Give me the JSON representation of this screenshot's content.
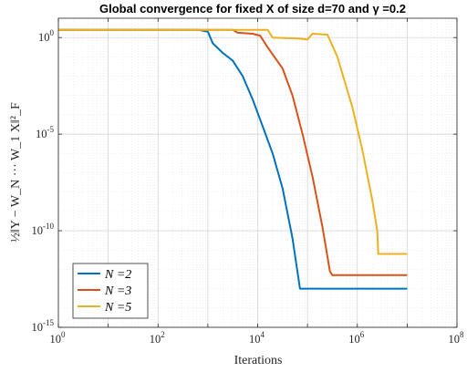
{
  "chart_data": {
    "type": "line",
    "title": "Global convergence for fixed X of size d=70 and γ =0.2",
    "xlabel": "Iterations",
    "ylabel": "½‖Y − W_N ··· W_1 X‖²_F",
    "xscale": "log",
    "yscale": "log",
    "xlim_exp": [
      0,
      8
    ],
    "ylim_exp": [
      -15,
      1
    ],
    "xtick_labels": [
      {
        "base": "10",
        "exp": "0"
      },
      {
        "base": "10",
        "exp": "2"
      },
      {
        "base": "10",
        "exp": "4"
      },
      {
        "base": "10",
        "exp": "6"
      },
      {
        "base": "10",
        "exp": "8"
      }
    ],
    "ytick_labels": [
      {
        "base": "10",
        "exp": "0"
      },
      {
        "base": "10",
        "exp": "-5"
      },
      {
        "base": "10",
        "exp": "-10"
      },
      {
        "base": "10",
        "exp": "-15"
      }
    ],
    "grid": true,
    "legend_position": "bottom-left",
    "series": [
      {
        "name": "N =2",
        "color": "#0072BD",
        "log10_points": [
          [
            0,
            0.4
          ],
          [
            2.8,
            0.4
          ],
          [
            3.0,
            0.3
          ],
          [
            3.1,
            -0.3
          ],
          [
            3.3,
            -0.8
          ],
          [
            3.5,
            -1.2
          ],
          [
            3.7,
            -2.0
          ],
          [
            3.9,
            -3.2
          ],
          [
            4.1,
            -4.6
          ],
          [
            4.3,
            -6.0
          ],
          [
            4.5,
            -7.8
          ],
          [
            4.7,
            -10.4
          ],
          [
            4.85,
            -13.0
          ],
          [
            5.2,
            -13.0
          ],
          [
            7.0,
            -13.0
          ]
        ]
      },
      {
        "name": "N =3",
        "color": "#D95319",
        "log10_points": [
          [
            0,
            0.4
          ],
          [
            3.5,
            0.4
          ],
          [
            3.6,
            0.25
          ],
          [
            3.9,
            0.2
          ],
          [
            4.05,
            0.1
          ],
          [
            4.2,
            -0.5
          ],
          [
            4.5,
            -1.6
          ],
          [
            4.7,
            -3.0
          ],
          [
            4.9,
            -5.0
          ],
          [
            5.1,
            -7.2
          ],
          [
            5.3,
            -9.8
          ],
          [
            5.45,
            -12.1
          ],
          [
            5.5,
            -12.3
          ],
          [
            7.0,
            -12.3
          ]
        ]
      },
      {
        "name": "N =5",
        "color": "#EDB120",
        "log10_points": [
          [
            0,
            0.4
          ],
          [
            4.2,
            0.4
          ],
          [
            4.3,
            0.0
          ],
          [
            4.8,
            -0.05
          ],
          [
            5.0,
            -0.1
          ],
          [
            5.1,
            0.2
          ],
          [
            5.4,
            0.15
          ],
          [
            5.6,
            -1.0
          ],
          [
            5.9,
            -3.6
          ],
          [
            6.1,
            -5.8
          ],
          [
            6.3,
            -8.4
          ],
          [
            6.4,
            -10.0
          ],
          [
            6.42,
            -11.2
          ],
          [
            7.0,
            -11.2
          ]
        ]
      }
    ]
  }
}
